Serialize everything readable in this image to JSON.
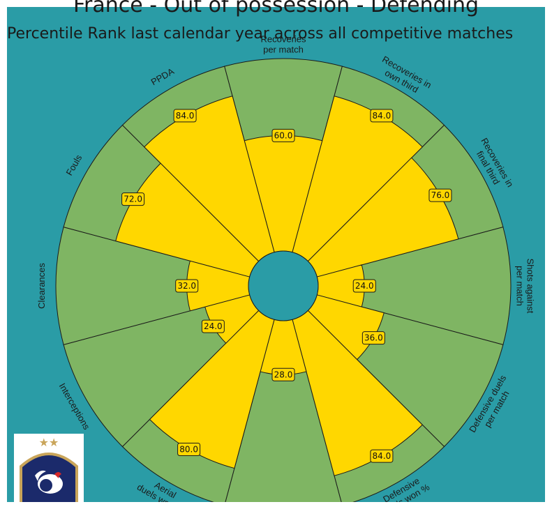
{
  "title": "France - Out of possession - Defending",
  "subtitle": "Percentile Rank last calendar year across all competitive matches",
  "colors": {
    "background": "#2a9ca6",
    "bar": "#ffd700",
    "slice": "#7fb563",
    "value_box": "#ffd700"
  },
  "chart_data": {
    "type": "bar",
    "layout": "radial",
    "range": [
      0,
      100
    ],
    "categories": [
      "Recoveries\nper match",
      "Recoveries in\nown third",
      "Recoveries in\nfinal third",
      "Shots against\nper match",
      "Defensive duels\nper match",
      "Defensive\nduels won %",
      "",
      "Aerial\nduels won %",
      "Interceptions",
      "Clearances",
      "Fouls",
      "PPDA"
    ],
    "values": [
      60,
      84,
      76,
      24,
      36,
      84,
      28,
      80,
      24,
      32,
      72,
      84
    ],
    "value_labels": [
      "60.0",
      "84.0",
      "76.0",
      "24.0",
      "36.0",
      "84.0",
      "28.0",
      "80.0",
      "24.0",
      "32.0",
      "72.0",
      "84.0"
    ]
  },
  "logo": {
    "name": "fff-rooster-crest",
    "stars": "★★"
  }
}
